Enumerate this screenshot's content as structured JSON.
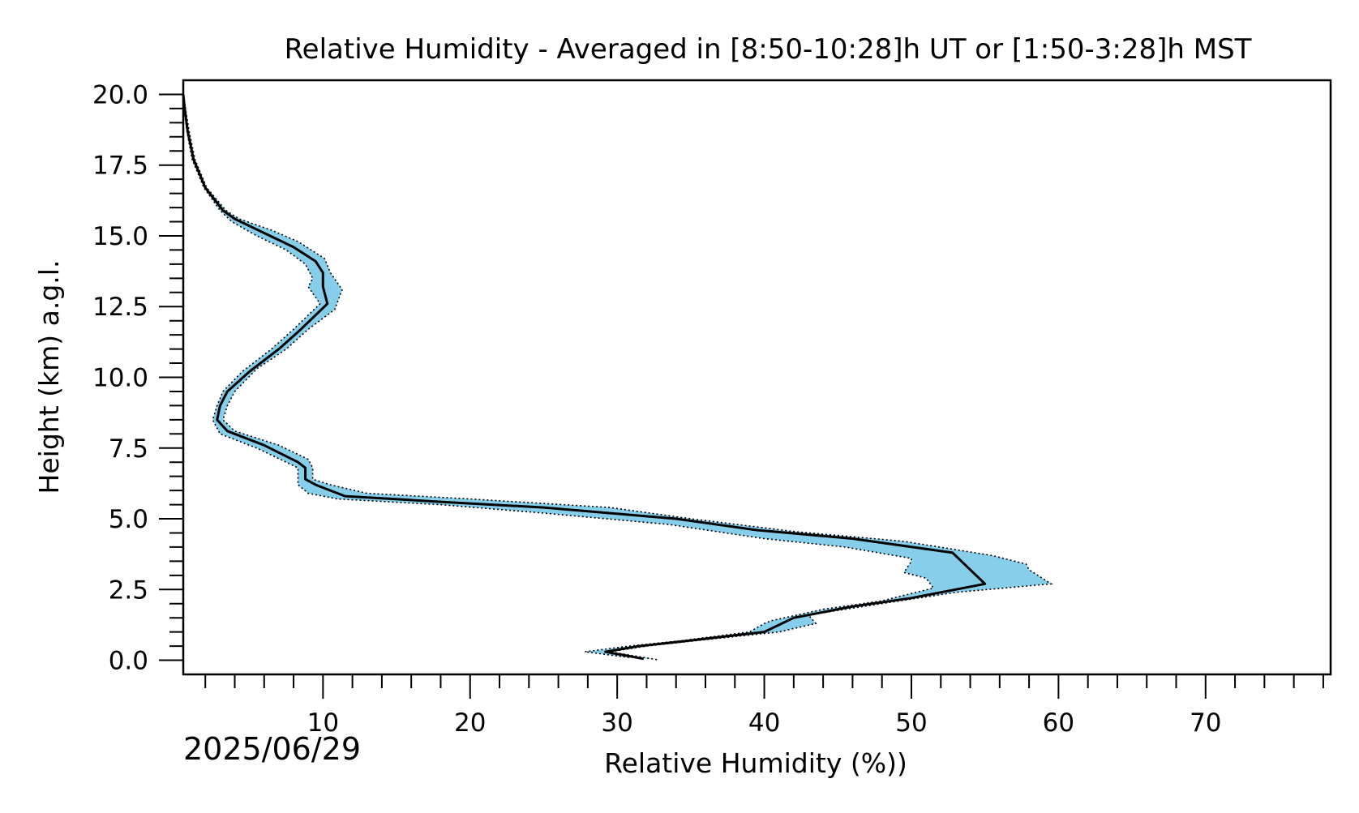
{
  "chart_data": {
    "type": "line",
    "title": "Relative Humidity - Averaged in [8:50-10:28]h UT or [1:50-3:28]h MST",
    "xlabel": "Relative Humidity (%))",
    "ylabel": "Height (km) a.g.l.",
    "date": "2025/06/29",
    "xlim": [
      0.5,
      78.5
    ],
    "ylim": [
      -0.5,
      20.5
    ],
    "x_ticks": [
      10,
      20,
      30,
      40,
      50,
      60,
      70
    ],
    "x_tick_labels": [
      "10",
      "20",
      "30",
      "40",
      "50",
      "60",
      "70"
    ],
    "x_minor_tick_step": 2,
    "y_ticks": [
      0,
      2.5,
      5,
      7.5,
      10,
      12.5,
      15,
      17.5,
      20
    ],
    "y_tick_labels": [
      "0.0",
      "2.5",
      "5.0",
      "7.5",
      "10.0",
      "12.5",
      "15.0",
      "17.5",
      "20.0"
    ],
    "y_minor_tick_step": 0.5,
    "grid": false,
    "colors": {
      "mean_line": "#000000",
      "band_fill": "#87ceeb",
      "band_edge": "#000000"
    },
    "series": [
      {
        "values": [
          [
            31.8,
            0.05
          ],
          [
            29.2,
            0.3
          ],
          [
            31.5,
            0.5
          ],
          [
            35,
            0.7
          ],
          [
            40,
            1.0
          ],
          [
            41.2,
            1.3
          ],
          [
            42,
            1.5
          ],
          [
            46,
            1.9
          ],
          [
            50,
            2.2
          ],
          [
            55,
            2.7
          ],
          [
            52.8,
            3.8
          ],
          [
            46,
            4.3
          ],
          [
            39.5,
            4.6
          ],
          [
            34,
            5.0
          ],
          [
            25,
            5.4
          ],
          [
            18,
            5.6
          ],
          [
            11.5,
            5.8
          ],
          [
            9.5,
            6.2
          ],
          [
            8.8,
            6.4
          ],
          [
            8.8,
            6.8
          ],
          [
            8.3,
            7.0
          ],
          [
            6,
            7.6
          ],
          [
            3.5,
            8.1
          ],
          [
            2.8,
            8.5
          ],
          [
            3,
            9.0
          ],
          [
            3.5,
            9.5
          ],
          [
            5,
            10.2
          ],
          [
            7,
            11.0
          ],
          [
            8.5,
            11.7
          ],
          [
            10.3,
            12.6
          ],
          [
            10,
            13.2
          ],
          [
            10,
            13.7
          ],
          [
            9.5,
            14.1
          ],
          [
            8,
            14.6
          ],
          [
            6,
            15.1
          ],
          [
            4,
            15.6
          ],
          [
            3.2,
            15.9
          ],
          [
            2,
            16.7
          ],
          [
            1.2,
            17.7
          ],
          [
            0.8,
            18.7
          ],
          [
            0.6,
            19.5
          ],
          [
            0.5,
            20.0
          ]
        ]
      }
    ],
    "band_upper": [
      [
        32.7,
        0.02
      ],
      [
        29.5,
        0.3
      ],
      [
        32,
        0.5
      ],
      [
        35.5,
        0.7
      ],
      [
        41,
        1.0
      ],
      [
        43.5,
        1.3
      ],
      [
        43,
        1.6
      ],
      [
        48,
        2.0
      ],
      [
        53,
        2.4
      ],
      [
        59.5,
        2.7
      ],
      [
        58,
        3.2
      ],
      [
        57.8,
        3.4
      ],
      [
        55.5,
        3.7
      ],
      [
        49.5,
        4.2
      ],
      [
        42,
        4.55
      ],
      [
        35,
        5.0
      ],
      [
        29.5,
        5.4
      ],
      [
        20,
        5.7
      ],
      [
        13,
        5.9
      ],
      [
        10.5,
        6.2
      ],
      [
        9.3,
        6.4
      ],
      [
        9.3,
        6.8
      ],
      [
        9,
        7.1
      ],
      [
        7,
        7.6
      ],
      [
        4,
        8.1
      ],
      [
        3.2,
        8.5
      ],
      [
        3.5,
        9.0
      ],
      [
        4,
        9.5
      ],
      [
        5.5,
        10.3
      ],
      [
        7.5,
        11.0
      ],
      [
        9,
        11.7
      ],
      [
        10.8,
        12.4
      ],
      [
        11.3,
        13.1
      ],
      [
        10.5,
        13.7
      ],
      [
        10.1,
        14.2
      ],
      [
        8.3,
        14.8
      ],
      [
        6.5,
        15.2
      ],
      [
        4.3,
        15.6
      ],
      [
        3.4,
        15.9
      ],
      [
        2.1,
        16.7
      ],
      [
        1.3,
        17.7
      ],
      [
        0.9,
        18.7
      ],
      [
        0.65,
        19.5
      ],
      [
        0.5,
        20.0
      ]
    ],
    "band_lower": [
      [
        30.8,
        0.1
      ],
      [
        27.8,
        0.3
      ],
      [
        30.8,
        0.5
      ],
      [
        34.5,
        0.7
      ],
      [
        39,
        1.0
      ],
      [
        40,
        1.3
      ],
      [
        40.5,
        1.4
      ],
      [
        44,
        1.8
      ],
      [
        48,
        2.1
      ],
      [
        51.5,
        2.55
      ],
      [
        51,
        2.9
      ],
      [
        49.5,
        3.1
      ],
      [
        50,
        3.5
      ],
      [
        50,
        3.6
      ],
      [
        45.5,
        4.0
      ],
      [
        40,
        4.3
      ],
      [
        33.5,
        4.8
      ],
      [
        25,
        5.2
      ],
      [
        18,
        5.5
      ],
      [
        11,
        5.7
      ],
      [
        9,
        5.9
      ],
      [
        8.3,
        6.2
      ],
      [
        8.3,
        6.8
      ],
      [
        7.5,
        7.0
      ],
      [
        5.5,
        7.5
      ],
      [
        3,
        8.0
      ],
      [
        2.5,
        8.5
      ],
      [
        2.8,
        9.0
      ],
      [
        3.2,
        9.5
      ],
      [
        4.5,
        10.2
      ],
      [
        6.5,
        11.0
      ],
      [
        8,
        11.7
      ],
      [
        9.8,
        12.6
      ],
      [
        9,
        13.2
      ],
      [
        9.3,
        13.5
      ],
      [
        8.8,
        14.0
      ],
      [
        7.5,
        14.5
      ],
      [
        5.5,
        15.0
      ],
      [
        3.8,
        15.5
      ],
      [
        3,
        15.9
      ],
      [
        1.9,
        16.7
      ],
      [
        1.1,
        17.7
      ],
      [
        0.75,
        18.7
      ],
      [
        0.55,
        19.5
      ],
      [
        0.5,
        20.0
      ]
    ]
  }
}
